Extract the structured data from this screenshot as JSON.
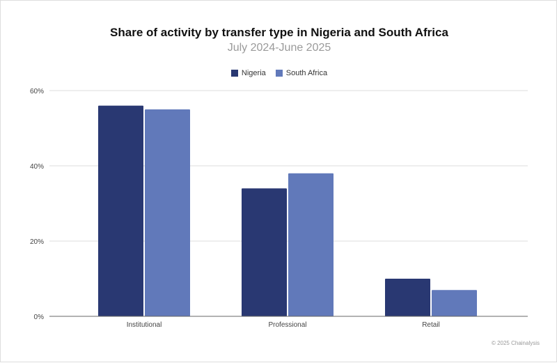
{
  "chart_data": {
    "type": "bar",
    "title": "Share of activity by transfer type in Nigeria and South Africa",
    "subtitle": "July 2024-June 2025",
    "categories": [
      "Institutional",
      "Professional",
      "Retail"
    ],
    "series": [
      {
        "name": "Nigeria",
        "values": [
          56,
          34,
          10
        ],
        "color": "#293872"
      },
      {
        "name": "South Africa",
        "values": [
          55,
          38,
          7
        ],
        "color": "#6179ba"
      }
    ],
    "ylim": [
      0,
      60
    ],
    "yticks": [
      "0%",
      "20%",
      "40%",
      "60%"
    ],
    "grid": true,
    "legend": "top-center"
  },
  "credit": "© 2025 Chainalysis"
}
